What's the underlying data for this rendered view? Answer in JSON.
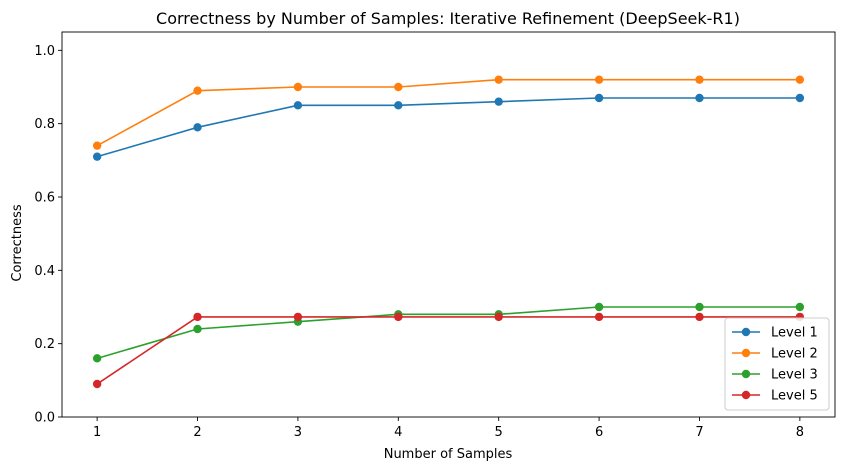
{
  "chart_data": {
    "type": "line",
    "title": "Correctness by Number of Samples: Iterative Refinement (DeepSeek-R1)",
    "xlabel": "Number of Samples",
    "ylabel": "Correctness",
    "x": [
      1,
      2,
      3,
      4,
      5,
      6,
      7,
      8
    ],
    "xticks": [
      "1",
      "2",
      "3",
      "4",
      "5",
      "6",
      "7",
      "8"
    ],
    "yticks": [
      "0.0",
      "0.2",
      "0.4",
      "0.6",
      "0.8",
      "1.0"
    ],
    "xlim": [
      0.65,
      8.35
    ],
    "ylim": [
      0,
      1.05
    ],
    "grid": false,
    "legend_position": "lower-right",
    "series": [
      {
        "name": "Level 1",
        "color": "#1f77b4",
        "values": [
          0.71,
          0.79,
          0.85,
          0.85,
          0.86,
          0.87,
          0.87,
          0.87
        ]
      },
      {
        "name": "Level 2",
        "color": "#ff7f0e",
        "values": [
          0.74,
          0.89,
          0.9,
          0.9,
          0.92,
          0.92,
          0.92,
          0.92
        ]
      },
      {
        "name": "Level 3",
        "color": "#2ca02c",
        "values": [
          0.16,
          0.24,
          0.26,
          0.28,
          0.28,
          0.3,
          0.3,
          0.3
        ]
      },
      {
        "name": "Level 5",
        "color": "#d62728",
        "values": [
          0.09,
          0.273,
          0.273,
          0.273,
          0.273,
          0.273,
          0.273,
          0.273
        ]
      }
    ]
  }
}
